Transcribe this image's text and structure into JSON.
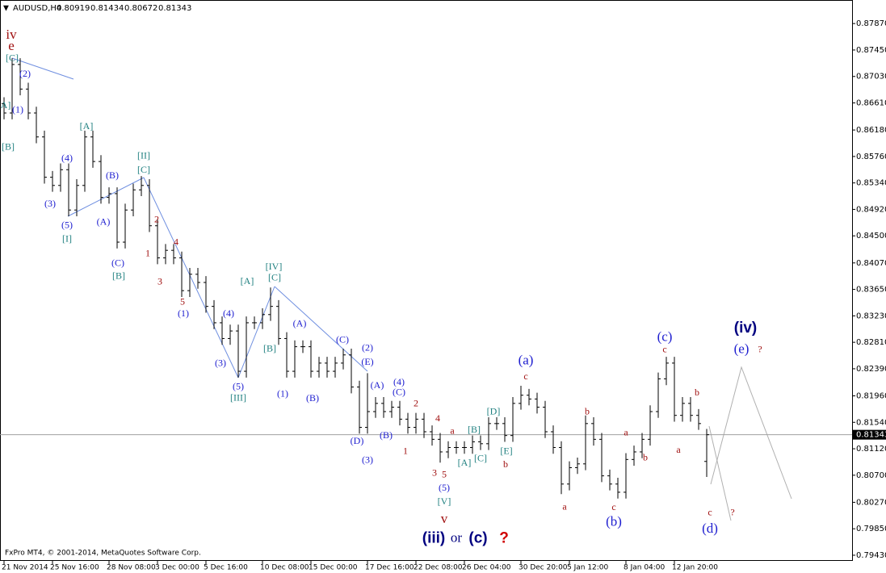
{
  "chart_data": {
    "type": "ohlc",
    "title": "AUDUSD,H4",
    "footer": "FxPro MT4, © 2001-2014, MetaQuotes Software Corp.",
    "color": "#000000",
    "categories": [
      "21 Nov 2014",
      null,
      null,
      null,
      null,
      null,
      "25 Nov 16:00",
      null,
      null,
      null,
      null,
      null,
      null,
      "28 Nov 08:00",
      null,
      null,
      null,
      null,
      null,
      "3 Dec 00:00",
      null,
      null,
      null,
      null,
      null,
      "5 Dec 16:00",
      null,
      null,
      null,
      null,
      null,
      null,
      "10 Dec 08:00",
      null,
      null,
      null,
      null,
      null,
      "15 Dec 00:00",
      null,
      null,
      null,
      null,
      null,
      null,
      "17 Dec 16:00",
      null,
      null,
      null,
      null,
      null,
      "22 Dec 08:00",
      null,
      null,
      null,
      null,
      null,
      "26 Dec 04:00",
      null,
      null,
      null,
      null,
      null,
      null,
      "30 Dec 20:00",
      null,
      null,
      null,
      null,
      null,
      "5 Jan 12:00",
      null,
      null,
      null,
      null,
      null,
      null,
      "8 Jan 04:00",
      null,
      null,
      null,
      null,
      null,
      "12 Jan 20:00",
      null,
      null,
      null,
      null
    ],
    "open": [
      0.866,
      0.8645,
      0.8722,
      0.8683,
      0.8645,
      0.8607,
      0.8543,
      0.853,
      0.8555,
      0.8491,
      0.853,
      0.8607,
      0.8568,
      0.8511,
      0.8517,
      0.844,
      0.8491,
      0.8523,
      0.853,
      0.8466,
      0.8415,
      0.8427,
      0.8415,
      0.8363,
      0.8389,
      0.8376,
      0.8338,
      0.8312,
      0.8287,
      0.8299,
      0.8235,
      0.8312,
      0.8312,
      0.8325,
      0.8338,
      0.8287,
      0.8235,
      0.8274,
      0.8274,
      0.8235,
      0.8248,
      0.8235,
      0.8248,
      0.8261,
      0.821,
      0.8146,
      0.8171,
      0.8184,
      0.8171,
      0.8178,
      0.8159,
      0.8146,
      0.8159,
      0.8139,
      0.8127,
      0.8107,
      0.8114,
      0.8114,
      0.8114,
      0.8123,
      0.812,
      0.8152,
      0.8152,
      0.8133,
      0.8184,
      0.8197,
      0.8191,
      0.8178,
      0.8139,
      0.8114,
      0.8056,
      0.8082,
      0.8088,
      0.8152,
      0.8127,
      0.8069,
      0.8056,
      0.8043,
      0.8095,
      0.8107,
      0.8127,
      0.8171,
      0.8223,
      0.8248,
      0.8165,
      0.8184,
      0.8165,
      0.80919
    ],
    "high": [
      0.867,
      0.8732,
      0.8732,
      0.8693,
      0.8655,
      0.8617,
      0.8553,
      0.8565,
      0.8565,
      0.854,
      0.8617,
      0.8617,
      0.8578,
      0.8527,
      0.8527,
      0.8501,
      0.8533,
      0.8545,
      0.854,
      0.8476,
      0.8437,
      0.8437,
      0.8425,
      0.8399,
      0.8399,
      0.8386,
      0.8348,
      0.8322,
      0.8309,
      0.8309,
      0.8322,
      0.8322,
      0.8335,
      0.8368,
      0.8348,
      0.8297,
      0.8284,
      0.8284,
      0.8284,
      0.8258,
      0.8258,
      0.8258,
      0.8271,
      0.8271,
      0.822,
      0.8232,
      0.8194,
      0.8194,
      0.8188,
      0.8188,
      0.8169,
      0.8169,
      0.8169,
      0.8149,
      0.8137,
      0.8124,
      0.8124,
      0.8124,
      0.8133,
      0.8133,
      0.8162,
      0.8162,
      0.8162,
      0.8194,
      0.8212,
      0.8207,
      0.8201,
      0.8188,
      0.8149,
      0.8124,
      0.8092,
      0.8098,
      0.8165,
      0.8162,
      0.8137,
      0.8079,
      0.8066,
      0.8105,
      0.8117,
      0.8137,
      0.8181,
      0.8233,
      0.8258,
      0.8258,
      0.8194,
      0.8194,
      0.8175,
      0.81434
    ],
    "low": [
      0.8635,
      0.8635,
      0.8673,
      0.8635,
      0.8597,
      0.8533,
      0.852,
      0.852,
      0.8481,
      0.8481,
      0.852,
      0.8558,
      0.8501,
      0.8501,
      0.843,
      0.843,
      0.8481,
      0.8513,
      0.8456,
      0.8405,
      0.8405,
      0.8405,
      0.8353,
      0.8353,
      0.8366,
      0.8328,
      0.8302,
      0.8277,
      0.8277,
      0.8225,
      0.8225,
      0.8302,
      0.8302,
      0.8315,
      0.8277,
      0.8225,
      0.8225,
      0.8264,
      0.8225,
      0.8225,
      0.8225,
      0.8225,
      0.8238,
      0.82,
      0.8136,
      0.8136,
      0.8161,
      0.8161,
      0.8161,
      0.8149,
      0.8136,
      0.8136,
      0.8129,
      0.8117,
      0.809,
      0.8097,
      0.8104,
      0.8104,
      0.8104,
      0.811,
      0.811,
      0.8142,
      0.8123,
      0.8123,
      0.8174,
      0.8181,
      0.8168,
      0.8129,
      0.8104,
      0.804,
      0.8046,
      0.8072,
      0.8078,
      0.8117,
      0.8059,
      0.8046,
      0.8033,
      0.8033,
      0.8085,
      0.8097,
      0.8117,
      0.8161,
      0.8213,
      0.8155,
      0.8155,
      0.8155,
      0.8142,
      0.80672
    ],
    "close": [
      0.8645,
      0.8722,
      0.8683,
      0.8645,
      0.8607,
      0.8543,
      0.853,
      0.8555,
      0.8491,
      0.853,
      0.8607,
      0.8568,
      0.8511,
      0.8517,
      0.844,
      0.8491,
      0.8523,
      0.853,
      0.8466,
      0.8415,
      0.8427,
      0.8415,
      0.8363,
      0.8389,
      0.8376,
      0.8338,
      0.8312,
      0.8287,
      0.8299,
      0.8235,
      0.8312,
      0.8312,
      0.8325,
      0.8338,
      0.8287,
      0.8235,
      0.8274,
      0.8274,
      0.8235,
      0.8248,
      0.8235,
      0.8248,
      0.8261,
      0.821,
      0.8146,
      0.8171,
      0.8184,
      0.8171,
      0.8178,
      0.8159,
      0.8146,
      0.8159,
      0.8139,
      0.8127,
      0.8107,
      0.8114,
      0.8114,
      0.8114,
      0.8123,
      0.812,
      0.8152,
      0.8152,
      0.8133,
      0.8184,
      0.8197,
      0.8191,
      0.8178,
      0.8139,
      0.8114,
      0.8056,
      0.8082,
      0.8088,
      0.8152,
      0.8127,
      0.8069,
      0.8056,
      0.8043,
      0.8095,
      0.8107,
      0.8127,
      0.8171,
      0.8223,
      0.8248,
      0.8165,
      0.8184,
      0.8165,
      0.8152,
      0.81343
    ],
    "last_price": 0.81343,
    "ylim": [
      0.7934,
      0.8809
    ],
    "yticks": [
      {
        "value": 0.8787,
        "label": "0.87870"
      },
      {
        "value": 0.8745,
        "label": "0.87450"
      },
      {
        "value": 0.8703,
        "label": "0.87030"
      },
      {
        "value": 0.8661,
        "label": "0.86610"
      },
      {
        "value": 0.8618,
        "label": "0.86180"
      },
      {
        "value": 0.8576,
        "label": "0.85760"
      },
      {
        "value": 0.8534,
        "label": "0.85340"
      },
      {
        "value": 0.8492,
        "label": "0.84920"
      },
      {
        "value": 0.845,
        "label": "0.84500"
      },
      {
        "value": 0.8407,
        "label": "0.84070"
      },
      {
        "value": 0.8365,
        "label": "0.83650"
      },
      {
        "value": 0.8323,
        "label": "0.83230"
      },
      {
        "value": 0.8281,
        "label": "0.82810"
      },
      {
        "value": 0.8239,
        "label": "0.82390"
      },
      {
        "value": 0.8196,
        "label": "0.81960"
      },
      {
        "value": 0.8154,
        "label": "0.81540"
      },
      {
        "value": 0.8112,
        "label": "0.81120"
      },
      {
        "value": 0.807,
        "label": "0.80700"
      },
      {
        "value": 0.8027,
        "label": "0.80270"
      },
      {
        "value": 0.7985,
        "label": "0.79850"
      },
      {
        "value": 0.7943,
        "label": "0.79430"
      }
    ],
    "grid": false,
    "annotations": [
      {
        "text": "iv",
        "x": 0.9,
        "y": 0.8768,
        "color": "#a01010",
        "emphasis": "large"
      },
      {
        "text": "e",
        "x": 0.9,
        "y": 0.875,
        "color": "#a01010",
        "emphasis": "large"
      },
      {
        "text": "[C]",
        "x": 1.0,
        "y": 0.8731,
        "color": "#208080"
      },
      {
        "text": "(2)",
        "x": 2.6,
        "y": 0.8706,
        "color": "#2020d0"
      },
      {
        "text": "(1)",
        "x": 1.7,
        "y": 0.8649,
        "color": "#2020d0"
      },
      {
        "text": "[A]",
        "x": 0,
        "y": 0.8656,
        "color": "#208080"
      },
      {
        "text": "[B]",
        "x": 0.5,
        "y": 0.859,
        "color": "#208080"
      },
      {
        "text": "[A]",
        "x": 10.2,
        "y": 0.8623,
        "color": "#208080"
      },
      {
        "text": "(4)",
        "x": 7.8,
        "y": 0.8572,
        "color": "#2020d0"
      },
      {
        "text": "(3)",
        "x": 5.7,
        "y": 0.85,
        "color": "#2020d0"
      },
      {
        "text": "(5)",
        "x": 7.8,
        "y": 0.8466,
        "color": "#2020d0"
      },
      {
        "text": "[I]",
        "x": 7.8,
        "y": 0.8444,
        "color": "#208080"
      },
      {
        "text": "(B)",
        "x": 13.4,
        "y": 0.8545,
        "color": "#2020d0"
      },
      {
        "text": "(A)",
        "x": 12.3,
        "y": 0.8471,
        "color": "#2020d0"
      },
      {
        "text": "[II]",
        "x": 17.3,
        "y": 0.8576,
        "color": "#208080"
      },
      {
        "text": "[C]",
        "x": 17.3,
        "y": 0.8554,
        "color": "#208080"
      },
      {
        "text": "2",
        "x": 18.9,
        "y": 0.8475,
        "color": "#a01010"
      },
      {
        "text": "4",
        "x": 21.3,
        "y": 0.8439,
        "color": "#a01010"
      },
      {
        "text": "1",
        "x": 17.8,
        "y": 0.8421,
        "color": "#a01010"
      },
      {
        "text": "3",
        "x": 19.3,
        "y": 0.8376,
        "color": "#a01010"
      },
      {
        "text": "5",
        "x": 22.1,
        "y": 0.8344,
        "color": "#a01010"
      },
      {
        "text": "(1)",
        "x": 22.2,
        "y": 0.8326,
        "color": "#2020d0"
      },
      {
        "text": "(C)",
        "x": 14.1,
        "y": 0.8406,
        "color": "#2020d0"
      },
      {
        "text": "[B]",
        "x": 14.2,
        "y": 0.8385,
        "color": "#208080"
      },
      {
        "text": "[IV]",
        "x": 33.4,
        "y": 0.84,
        "color": "#208080"
      },
      {
        "text": "[C]",
        "x": 33.5,
        "y": 0.8383,
        "color": "#208080"
      },
      {
        "text": "[A]",
        "x": 30.1,
        "y": 0.8377,
        "color": "#208080"
      },
      {
        "text": "(4)",
        "x": 27.8,
        "y": 0.8326,
        "color": "#2020d0"
      },
      {
        "text": "(3)",
        "x": 26.8,
        "y": 0.8247,
        "color": "#2020d0"
      },
      {
        "text": "(5)",
        "x": 29.0,
        "y": 0.821,
        "color": "#2020d0"
      },
      {
        "text": "[III]",
        "x": 29.0,
        "y": 0.8192,
        "color": "#208080"
      },
      {
        "text": "(A)",
        "x": 36.6,
        "y": 0.831,
        "color": "#2020d0"
      },
      {
        "text": "[B]",
        "x": 32.9,
        "y": 0.827,
        "color": "#208080"
      },
      {
        "text": "(C)",
        "x": 41.9,
        "y": 0.8284,
        "color": "#2020d0"
      },
      {
        "text": "(1)",
        "x": 34.5,
        "y": 0.8198,
        "color": "#2020d0"
      },
      {
        "text": "(B)",
        "x": 38.2,
        "y": 0.8191,
        "color": "#2020d0"
      },
      {
        "text": "(2)",
        "x": 45.0,
        "y": 0.8271,
        "color": "#2020d0"
      },
      {
        "text": "(E)",
        "x": 45.0,
        "y": 0.8249,
        "color": "#2020d0"
      },
      {
        "text": "(4)",
        "x": 48.9,
        "y": 0.8217,
        "color": "#2020d0"
      },
      {
        "text": "(A)",
        "x": 46.2,
        "y": 0.8212,
        "color": "#2020d0"
      },
      {
        "text": "(C)",
        "x": 48.9,
        "y": 0.8201,
        "color": "#2020d0"
      },
      {
        "text": "(D)",
        "x": 43.7,
        "y": 0.8123,
        "color": "#2020d0"
      },
      {
        "text": "(B)",
        "x": 47.3,
        "y": 0.8132,
        "color": "#2020d0"
      },
      {
        "text": "(3)",
        "x": 45.0,
        "y": 0.8093,
        "color": "#2020d0"
      },
      {
        "text": "2",
        "x": 51.0,
        "y": 0.8183,
        "color": "#a01010"
      },
      {
        "text": "1",
        "x": 49.7,
        "y": 0.8107,
        "color": "#a01010"
      },
      {
        "text": "4",
        "x": 53.7,
        "y": 0.8159,
        "color": "#a01010"
      },
      {
        "text": "a",
        "x": 55.5,
        "y": 0.8139,
        "color": "#a01010"
      },
      {
        "text": "3",
        "x": 53.3,
        "y": 0.8073,
        "color": "#a01010"
      },
      {
        "text": "5",
        "x": 54.5,
        "y": 0.807,
        "color": "#a01010"
      },
      {
        "text": "(5)",
        "x": 54.5,
        "y": 0.8049,
        "color": "#2020d0"
      },
      {
        "text": "[V]",
        "x": 54.5,
        "y": 0.8027,
        "color": "#208080"
      },
      {
        "text": "v",
        "x": 54.5,
        "y": 0.7999,
        "color": "#a01010",
        "emphasis": "large"
      },
      {
        "text": "[B]",
        "x": 58.2,
        "y": 0.8141,
        "color": "#208080"
      },
      {
        "text": "[A]",
        "x": 57.0,
        "y": 0.8089,
        "color": "#208080"
      },
      {
        "text": "[C]",
        "x": 59.0,
        "y": 0.8096,
        "color": "#208080"
      },
      {
        "text": "[D]",
        "x": 60.6,
        "y": 0.817,
        "color": "#208080"
      },
      {
        "text": "[E]",
        "x": 62.2,
        "y": 0.8107,
        "color": "#208080"
      },
      {
        "text": "b",
        "x": 62.1,
        "y": 0.8086,
        "color": "#a01010"
      },
      {
        "text": "(a)",
        "x": 64.6,
        "y": 0.8251,
        "color": "#2020d0",
        "emphasis": "large"
      },
      {
        "text": "c",
        "x": 64.6,
        "y": 0.8226,
        "color": "#a01010"
      },
      {
        "text": "b",
        "x": 72.2,
        "y": 0.817,
        "color": "#a01010"
      },
      {
        "text": "a",
        "x": 69.4,
        "y": 0.8019,
        "color": "#a01010"
      },
      {
        "text": "c",
        "x": 75.5,
        "y": 0.8018,
        "color": "#a01010"
      },
      {
        "text": "(b)",
        "x": 75.5,
        "y": 0.7995,
        "color": "#2020d0",
        "emphasis": "large"
      },
      {
        "text": "a",
        "x": 77.0,
        "y": 0.8137,
        "color": "#a01010"
      },
      {
        "text": "b",
        "x": 79.4,
        "y": 0.8097,
        "color": "#a01010"
      },
      {
        "text": "(c)",
        "x": 81.8,
        "y": 0.8288,
        "color": "#2020d0",
        "emphasis": "large"
      },
      {
        "text": "c",
        "x": 81.8,
        "y": 0.8269,
        "color": "#a01010"
      },
      {
        "text": "b",
        "x": 85.8,
        "y": 0.82,
        "color": "#a01010"
      },
      {
        "text": "a",
        "x": 83.5,
        "y": 0.8109,
        "color": "#a01010"
      },
      {
        "text": "(iv)",
        "x": 91.8,
        "y": 0.8303,
        "color": "#000080",
        "emphasis": "bold"
      },
      {
        "text": "(e)",
        "x": 91.3,
        "y": 0.8269,
        "color": "#2020d0",
        "emphasis": "large"
      },
      {
        "text": "?",
        "x": 93.6,
        "y": 0.8269,
        "color": "#a01010"
      },
      {
        "text": "c",
        "x": 87.4,
        "y": 0.801,
        "color": "#a01010"
      },
      {
        "text": "?",
        "x": 90.2,
        "y": 0.801,
        "color": "#a01010"
      },
      {
        "text": "(d)",
        "x": 87.4,
        "y": 0.7984,
        "color": "#2020d0",
        "emphasis": "large"
      },
      {
        "text": "(iii)",
        "x": 53.2,
        "y": 0.7969,
        "color": "#000080",
        "emphasis": "bold"
      },
      {
        "text": "or",
        "x": 56.0,
        "y": 0.7969,
        "color": "#000080",
        "emphasis": "large"
      },
      {
        "text": "(c)",
        "x": 58.7,
        "y": 0.7969,
        "color": "#000080",
        "emphasis": "bold"
      },
      {
        "text": "?",
        "x": 61.9,
        "y": 0.7969,
        "color": "#d00000",
        "emphasis": "bold"
      }
    ]
  }
}
